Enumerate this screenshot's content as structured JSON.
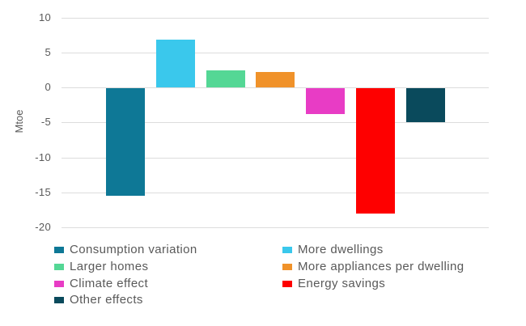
{
  "chart_data": {
    "type": "bar",
    "title": "",
    "xlabel": "",
    "ylabel": "Mtoe",
    "ylim": [
      -20,
      10
    ],
    "yticks": [
      10,
      5,
      0,
      -5,
      -10,
      -15,
      -20
    ],
    "grid": true,
    "legend_position": "bottom",
    "legend_columns": 2,
    "categories": [
      "Consumption variation",
      "More dwellings",
      "Larger homes",
      "More appliances per dwelling",
      "Climate effect",
      "Energy savings",
      "Other effects"
    ],
    "series": [
      {
        "name": "Consumption variation",
        "value": -15.4,
        "color": "#0e7896"
      },
      {
        "name": "More dwellings",
        "value": 6.8,
        "color": "#3ac8ec"
      },
      {
        "name": "Larger homes",
        "value": 2.4,
        "color": "#54d795"
      },
      {
        "name": "More appliances per dwelling",
        "value": 2.2,
        "color": "#f0922a"
      },
      {
        "name": "Climate effect",
        "value": -3.8,
        "color": "#e83cc5"
      },
      {
        "name": "Energy savings",
        "value": -18,
        "color": "#fe0000"
      },
      {
        "name": "Other effects",
        "value": -4.9,
        "color": "#0a4a5c"
      }
    ]
  },
  "colors": {
    "background": "#ffffff",
    "gridline": "#dcdcdc",
    "axis_text": "#595959"
  }
}
